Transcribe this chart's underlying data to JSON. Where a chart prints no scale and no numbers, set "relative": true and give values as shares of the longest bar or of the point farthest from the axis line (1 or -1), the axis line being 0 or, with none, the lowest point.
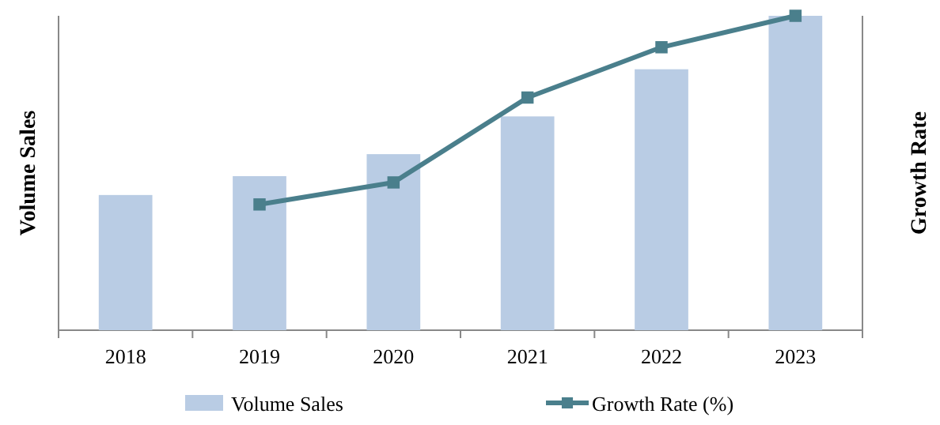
{
  "chart_data": {
    "type": "bar",
    "relative": true,
    "ylabel": "Volume Sales",
    "y2label": "Growth Rate",
    "legend": "bottom",
    "categories": [
      "2018",
      "2019",
      "2020",
      "2021",
      "2022",
      "2023"
    ],
    "series": [
      {
        "name": "Volume Sales",
        "color": "#b9cce4",
        "values": [
          0.43,
          0.49,
          0.56,
          0.68,
          0.83,
          1.0
        ]
      },
      {
        "name": "Growth Rate (%)",
        "type": "line",
        "axis": "y2",
        "color": "#4a7f8c",
        "marker": "square",
        "values": [
          null,
          0.4,
          0.47,
          0.74,
          0.9,
          1.0
        ]
      }
    ]
  }
}
